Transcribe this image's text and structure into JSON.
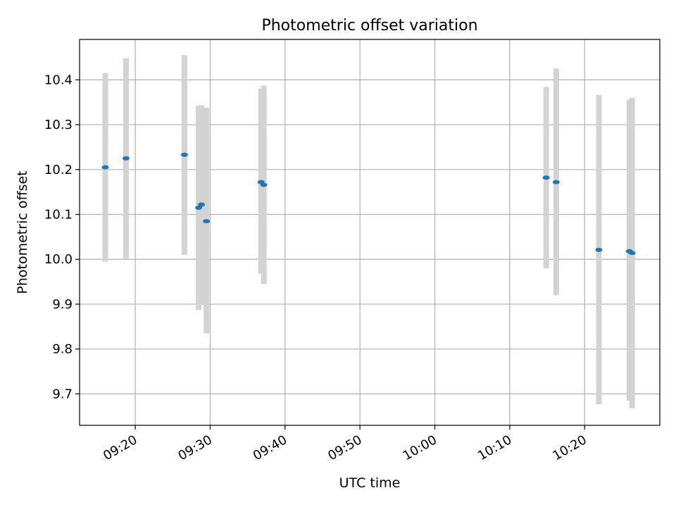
{
  "chart_data": {
    "type": "scatter",
    "title": "Photometric offset variation",
    "xlabel": "UTC time",
    "ylabel": "Photometric offset",
    "x_tick_labels": [
      "09:20",
      "09:30",
      "09:40",
      "09:50",
      "10:00",
      "10:10",
      "10:20"
    ],
    "y_tick_labels": [
      "9.7",
      "9.8",
      "9.9",
      "10.0",
      "10.1",
      "10.2",
      "10.3",
      "10.4"
    ],
    "x_ticks": [
      "09:20",
      "09:30",
      "09:40",
      "09:50",
      "10:00",
      "10:10",
      "10:20"
    ],
    "y_ticks": [
      9.7,
      9.8,
      9.9,
      10.0,
      10.1,
      10.2,
      10.3,
      10.4
    ],
    "xlim": [
      "09:12:34",
      "10:30:02"
    ],
    "ylim": [
      9.63,
      10.49
    ],
    "grid": true,
    "marker_color": "#1f77b4",
    "errorbar_color": "#d3d3d3",
    "points": [
      {
        "x": "09:16:00",
        "y": 10.205,
        "yerr_low": 9.995,
        "yerr_high": 10.415
      },
      {
        "x": "09:18:46",
        "y": 10.225,
        "yerr_low": 10.0,
        "yerr_high": 10.448
      },
      {
        "x": "09:26:34",
        "y": 10.233,
        "yerr_low": 10.01,
        "yerr_high": 10.455
      },
      {
        "x": "09:28:28",
        "y": 10.115,
        "yerr_low": 9.887,
        "yerr_high": 10.342
      },
      {
        "x": "09:28:50",
        "y": 10.122,
        "yerr_low": 9.9,
        "yerr_high": 10.343
      },
      {
        "x": "09:29:30",
        "y": 10.085,
        "yerr_low": 9.835,
        "yerr_high": 10.338
      },
      {
        "x": "09:36:48",
        "y": 10.172,
        "yerr_low": 9.968,
        "yerr_high": 10.38
      },
      {
        "x": "09:37:10",
        "y": 10.166,
        "yerr_low": 9.945,
        "yerr_high": 10.387
      },
      {
        "x": "10:14:52",
        "y": 10.182,
        "yerr_low": 9.98,
        "yerr_high": 10.384
      },
      {
        "x": "10:16:12",
        "y": 10.172,
        "yerr_low": 9.92,
        "yerr_high": 10.425
      },
      {
        "x": "10:21:54",
        "y": 10.021,
        "yerr_low": 9.677,
        "yerr_high": 10.366
      },
      {
        "x": "10:25:58",
        "y": 10.018,
        "yerr_low": 9.685,
        "yerr_high": 10.355
      },
      {
        "x": "10:26:20",
        "y": 10.014,
        "yerr_low": 9.668,
        "yerr_high": 10.36
      }
    ]
  }
}
